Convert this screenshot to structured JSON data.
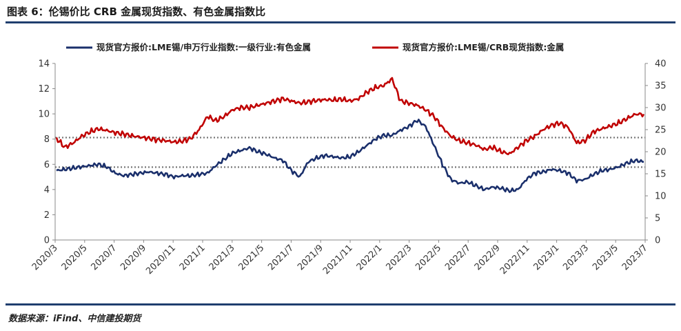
{
  "title": "图表 6：伦锡价比 CRB 金属现货指数、有色金属指数比",
  "source": "数据来源：iFind、中信建投期货",
  "chart_data": {
    "type": "line",
    "x_tick_labels": [
      "2020/3",
      "2020/5",
      "2020/7",
      "2020/9",
      "2020/11",
      "2021/1",
      "2021/3",
      "2021/5",
      "2021/7",
      "2021/9",
      "2021/11",
      "2022/1",
      "2022/3",
      "2022/5",
      "2022/7",
      "2022/9",
      "2022/11",
      "2023/1",
      "2023/3",
      "2023/5",
      "2023/7"
    ],
    "y_left": {
      "ylim": [
        0,
        14
      ],
      "ticks": [
        0,
        2,
        4,
        6,
        8,
        10,
        12,
        14
      ]
    },
    "y_right": {
      "ylim": [
        0,
        40
      ],
      "ticks": [
        0,
        5,
        10,
        15,
        20,
        25,
        30,
        35,
        40
      ]
    },
    "grid": false,
    "legend_position": "top",
    "series": [
      {
        "name": "现货官方报价:LME锡/申万行业指数:一级行业:有色金属",
        "axis": "left",
        "color": "#1a2f6b",
        "values": [
          5.5,
          5.6,
          5.7,
          5.8,
          5.9,
          6.0,
          5.8,
          5.3,
          5.1,
          5.2,
          5.3,
          5.4,
          5.3,
          5.2,
          5.0,
          5.1,
          5.1,
          5.2,
          5.3,
          5.9,
          6.4,
          6.9,
          7.1,
          7.3,
          7.0,
          6.8,
          6.5,
          6.3,
          5.5,
          5.0,
          6.2,
          6.5,
          6.7,
          6.6,
          6.5,
          6.6,
          7.0,
          7.5,
          8.0,
          8.3,
          8.3,
          8.7,
          9.0,
          9.5,
          9.0,
          7.5,
          6.0,
          4.8,
          4.5,
          4.6,
          4.3,
          4.0,
          4.2,
          4.1,
          3.9,
          4.0,
          4.8,
          5.3,
          5.4,
          5.6,
          5.5,
          5.3,
          4.7,
          4.8,
          5.2,
          5.5,
          5.6,
          5.8,
          6.1,
          6.3,
          6.2
        ]
      },
      {
        "name": "现货官方报价:LME锡/CRB现货指数:金属",
        "axis": "right",
        "color": "#c00000",
        "values": [
          23.0,
          21.0,
          22.0,
          23.5,
          24.5,
          25.2,
          24.8,
          24.3,
          24.0,
          23.6,
          23.3,
          23.0,
          22.7,
          22.5,
          22.2,
          22.4,
          23.0,
          25.0,
          28.0,
          27.0,
          28.0,
          29.5,
          30.0,
          30.0,
          30.5,
          31.0,
          31.5,
          32.0,
          31.5,
          31.0,
          31.3,
          31.6,
          31.8,
          31.7,
          31.9,
          31.5,
          32.0,
          33.5,
          34.5,
          35.0,
          36.5,
          31.5,
          31.0,
          30.5,
          29.5,
          28.0,
          25.5,
          23.5,
          22.5,
          22.0,
          21.5,
          20.5,
          21.0,
          20.0,
          19.5,
          21.0,
          22.5,
          23.5,
          25.0,
          26.0,
          26.5,
          25.5,
          22.0,
          22.5,
          24.5,
          25.2,
          25.8,
          26.5,
          27.5,
          28.5,
          28.5
        ]
      }
    ],
    "reference_lines": [
      {
        "axis": "right",
        "value": 23.2,
        "style": "dotted"
      },
      {
        "axis": "right",
        "value": 16.5,
        "style": "dotted"
      }
    ]
  }
}
